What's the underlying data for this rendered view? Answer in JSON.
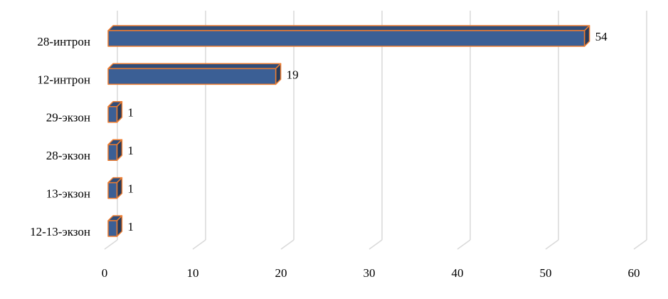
{
  "chart_data": {
    "type": "bar",
    "orientation": "horizontal",
    "three_d": true,
    "categories": [
      "28-интрон",
      "12-интрон",
      "29-экзон",
      "28-экзон",
      "13-экзон",
      "12-13-экзон"
    ],
    "values": [
      54,
      19,
      1,
      1,
      1,
      1
    ],
    "color": "#3b5f95",
    "edge_color": "#ed7d31",
    "xlim": [
      0,
      60
    ],
    "xticks": [
      0,
      10,
      20,
      30,
      40,
      50,
      60
    ],
    "grid": true
  }
}
